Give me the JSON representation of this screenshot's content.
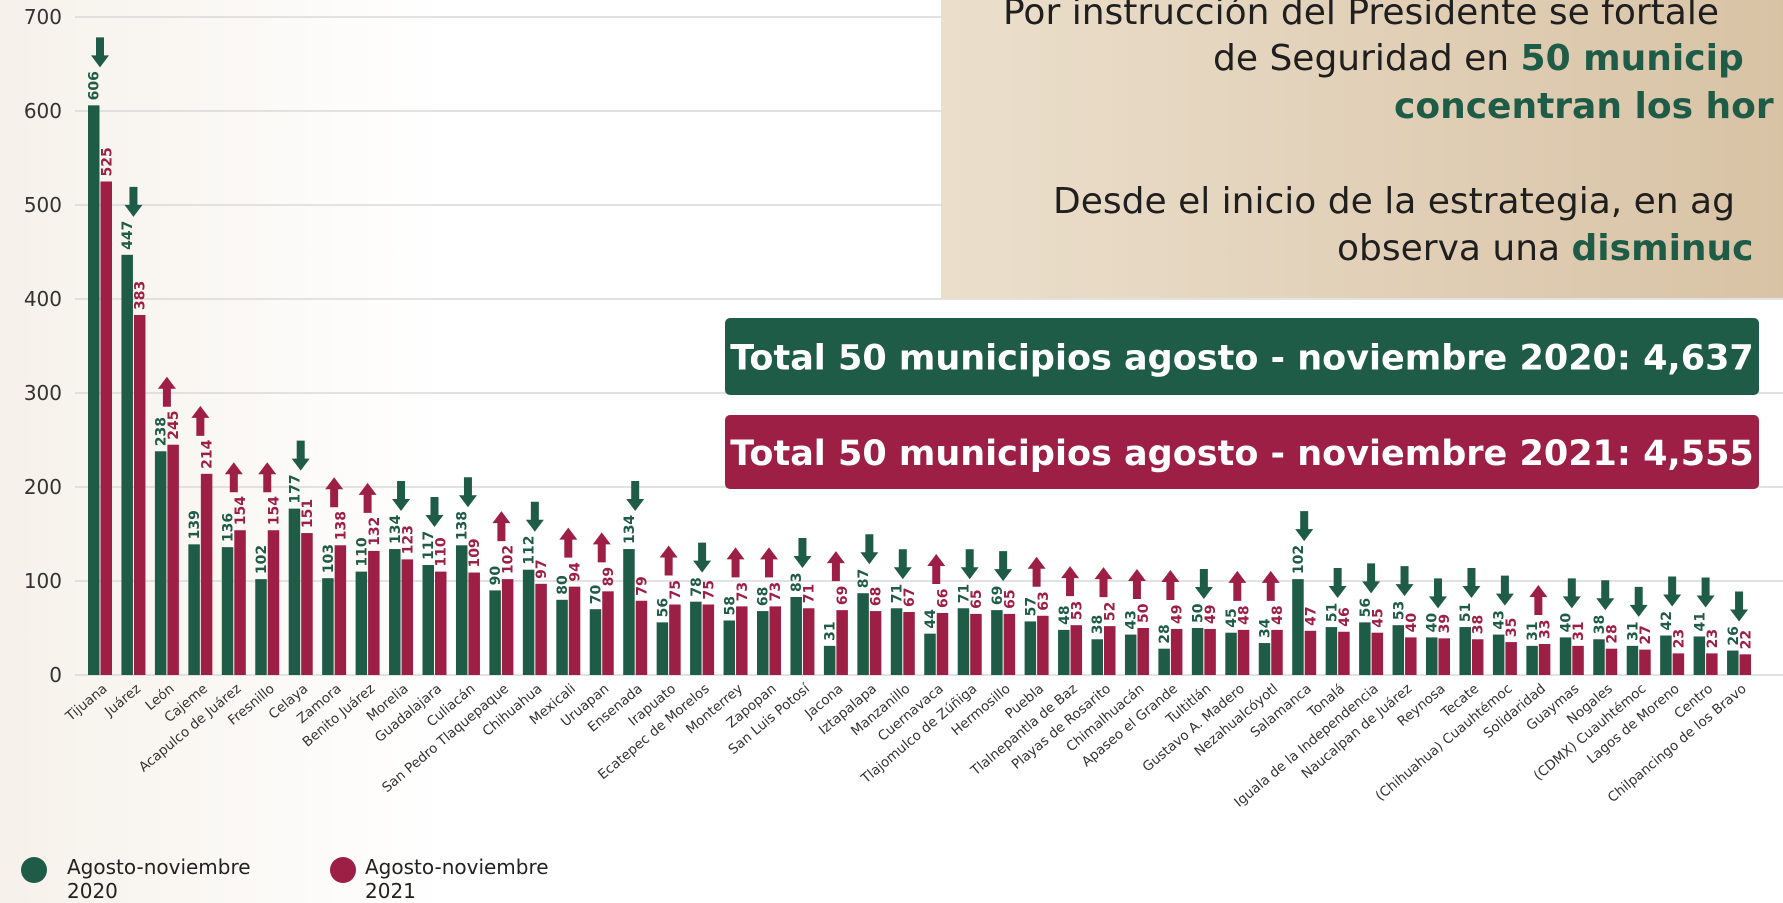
{
  "chart_data": {
    "type": "bar",
    "categories": [
      "Tijuana",
      "Juárez",
      "León",
      "Cajeme",
      "Acapulco de Juárez",
      "Fresnillo",
      "Celaya",
      "Zamora",
      "Benito Juárez",
      "Morelia",
      "Guadalajara",
      "Culiacán",
      "San Pedro Tlaquepaque",
      "Chihuahua",
      "Mexicali",
      "Uruapan",
      "Ensenada",
      "Irapuato",
      "Ecatepec de Morelos",
      "Monterrey",
      "Zapopan",
      "San Luis Potosí",
      "Jacona",
      "Iztapalapa",
      "Manzanillo",
      "Cuernavaca",
      "Tlajomulco de Zúñiga",
      "Hermosillo",
      "Puebla",
      "Tlalnepantla de Baz",
      "Playas de Rosarito",
      "Chimalhuacán",
      "Apaseo el Grande",
      "Tultitlán",
      "Gustavo A. Madero",
      "Nezahualcóyotl",
      "Salamanca",
      "Tonalá",
      "Iguala de la Independencia",
      "Naucalpan de Juárez",
      "Reynosa",
      "Tecate",
      "(Chihuahua) Cuauhtémoc",
      "Solidaridad",
      "Guaymas",
      "Nogales",
      "(CDMX) Cuauhtémoc",
      "Lagos de Moreno",
      "Centro",
      "Chilpancingo de los Bravo"
    ],
    "series": [
      {
        "name": "Agosto-noviembre 2020",
        "color": "#1f5c47",
        "values": [
          606,
          447,
          238,
          139,
          136,
          102,
          177,
          103,
          110,
          134,
          117,
          138,
          90,
          112,
          80,
          70,
          134,
          56,
          78,
          58,
          68,
          83,
          31,
          87,
          71,
          44,
          71,
          69,
          57,
          48,
          38,
          43,
          28,
          50,
          45,
          34,
          102,
          51,
          56,
          53,
          40,
          51,
          43,
          31,
          40,
          38,
          31,
          42,
          41,
          26
        ]
      },
      {
        "name": "Agosto-noviembre 2021",
        "color": "#9d1f45",
        "values": [
          525,
          383,
          245,
          214,
          154,
          154,
          151,
          138,
          132,
          123,
          110,
          109,
          102,
          97,
          94,
          89,
          79,
          75,
          75,
          73,
          73,
          71,
          69,
          68,
          67,
          66,
          65,
          65,
          63,
          53,
          52,
          50,
          49,
          49,
          48,
          48,
          47,
          46,
          45,
          40,
          39,
          38,
          35,
          33,
          31,
          28,
          27,
          23,
          23,
          22
        ]
      }
    ],
    "ylim": [
      0,
      700
    ],
    "yticks": [
      0,
      100,
      200,
      300,
      400,
      500,
      600,
      700
    ],
    "grid": true
  },
  "panel": {
    "lines": [
      [
        {
          "text": "Por instrucción del Presidente se fortale",
          "bold": false
        }
      ],
      [
        {
          "text": "de Seguridad en ",
          "bold": false
        },
        {
          "text": "50 municip",
          "bold": true
        }
      ],
      [
        {
          "text": "concentran los hor",
          "bold": true
        }
      ],
      [
        {
          "text": "Desde el inicio de la estrategia, en ag",
          "bold": false
        }
      ],
      [
        {
          "text": "observa una ",
          "bold": false
        },
        {
          "text": "disminuc",
          "bold": true
        }
      ]
    ]
  },
  "totals": [
    {
      "text": "Total 50 municipios agosto - noviembre 2020: 4,637",
      "color": "#1f5c47"
    },
    {
      "text": "Total 50 municipios agosto - noviembre 2021: 4,555",
      "color": "#9d1f45"
    }
  ]
}
